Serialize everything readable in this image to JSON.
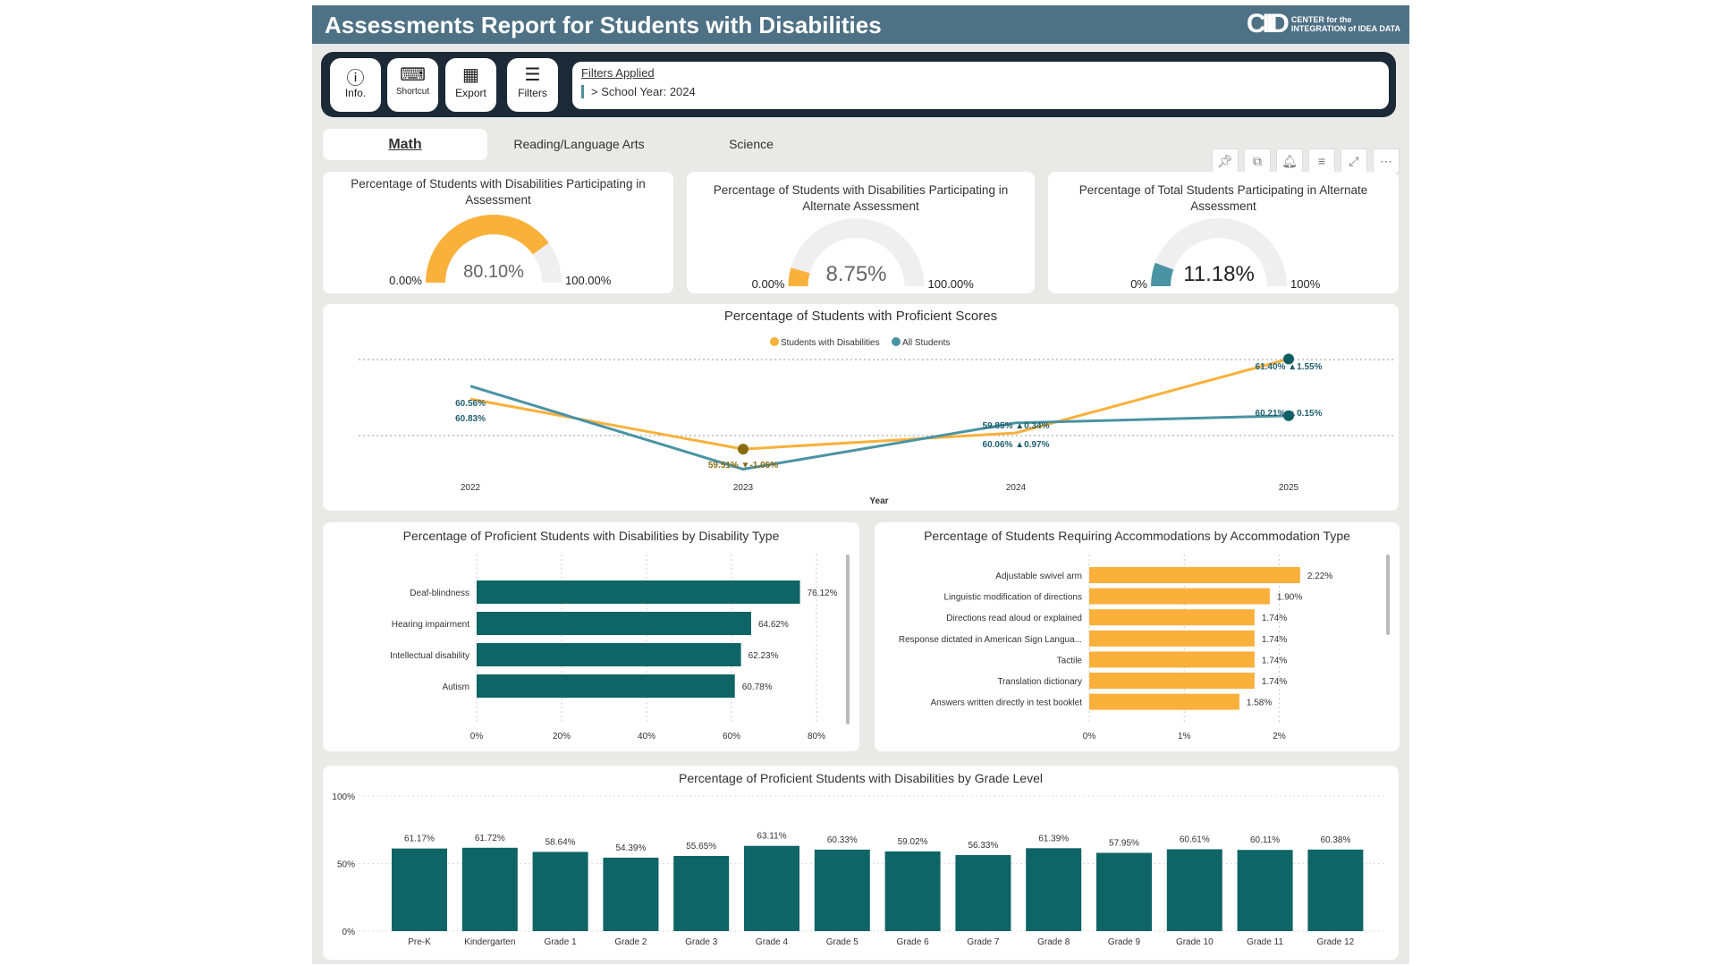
{
  "header": {
    "title": "Assessments Report for Students with Disabilities",
    "logo_text": "CENTER for the INTEGRATION of IDEA DATA"
  },
  "toolbar": {
    "info": "Info.",
    "shortcut": "Shortcut",
    "export": "Export",
    "filters": "Filters",
    "filters_applied": "Filters Applied",
    "filter_value": "> School Year: 2024"
  },
  "tabs": [
    "Math",
    "Reading/Language Arts",
    "Science"
  ],
  "gauges": [
    {
      "title": "Percentage of Students with Disabilities Participating in Assessment",
      "value": 80.1,
      "label": "80.10%",
      "min": "0.00%",
      "max": "100.00%",
      "color": "#f9b13b"
    },
    {
      "title": "Percentage of Students with Disabilities Participating in Alternate Assessment",
      "value": 8.75,
      "label": "8.75%",
      "min": "0.00%",
      "max": "100.00%",
      "color": "#f9b13b"
    },
    {
      "title": "Percentage of Total Students Participating in Alternate Assessment",
      "value": 11.18,
      "label": "11.18%",
      "min": "0%",
      "max": "100%",
      "color": "#4a93a3"
    }
  ],
  "chart_data": [
    {
      "type": "line",
      "title": "Percentage of Students with Proficient Scores",
      "xlabel": "Year",
      "x": [
        "2022",
        "2023",
        "2024",
        "2025"
      ],
      "series": [
        {
          "name": "Students with Disabilities",
          "color": "#f9b13b",
          "values": [
            60.56,
            59.51,
            59.85,
            61.4
          ]
        },
        {
          "name": "All Students",
          "color": "#4a93a3",
          "values": [
            60.83,
            59.09,
            60.06,
            60.21
          ]
        }
      ],
      "ylim": [
        58.8,
        61.8
      ],
      "annotations": [
        {
          "text": "60.56%",
          "year": "2022",
          "pos": "upper"
        },
        {
          "text": "60.83%",
          "year": "2022",
          "pos": "lower"
        },
        {
          "text": "59.51% ▼-1.05%",
          "year": "2023",
          "pos": "lower"
        },
        {
          "text": "59.85% ▲0.34%",
          "year": "2024",
          "pos": "upper"
        },
        {
          "text": "60.06% ▲0.97%",
          "year": "2024",
          "pos": "lower"
        },
        {
          "text": "61.40% ▲1.55%",
          "year": "2025",
          "pos": "upper"
        },
        {
          "text": "60.21% ▲0.15%",
          "year": "2025",
          "pos": "lower"
        }
      ]
    },
    {
      "type": "bar",
      "orientation": "horizontal",
      "title": "Percentage of Proficient Students with Disabilities by Disability Type",
      "categories": [
        "Deaf-blindness",
        "Hearing impairment",
        "Intellectual disability",
        "Autism"
      ],
      "values": [
        76.12,
        64.62,
        62.23,
        60.78
      ],
      "labels": [
        "76.12%",
        "64.62%",
        "62.23%",
        "60.78%"
      ],
      "xlim": [
        0,
        80
      ],
      "ticks": [
        "0%",
        "20%",
        "40%",
        "60%",
        "80%"
      ],
      "color": "#0f6466"
    },
    {
      "type": "bar",
      "orientation": "horizontal",
      "title": "Percentage of Students Requiring Accommodations by Accommodation Type",
      "categories": [
        "Adjustable swivel arm",
        "Linguistic modification of directions",
        "Directions read aloud or explained",
        "Response dictated in American Sign Langua...",
        "Tactile",
        "Translation dictionary",
        "Answers written directly in test booklet"
      ],
      "values": [
        2.22,
        1.9,
        1.74,
        1.74,
        1.74,
        1.74,
        1.58
      ],
      "labels": [
        "2.22%",
        "1.90%",
        "1.74%",
        "1.74%",
        "1.74%",
        "1.74%",
        "1.58%"
      ],
      "xlim": [
        0,
        2.4
      ],
      "ticks": [
        "0%",
        "1%",
        "2%"
      ],
      "color": "#f9b13b"
    },
    {
      "type": "bar",
      "title": "Percentage of Proficient Students with Disabilities by Grade Level",
      "categories": [
        "Pre-K",
        "Kindergarten",
        "Grade 1",
        "Grade 2",
        "Grade 3",
        "Grade 4",
        "Grade 5",
        "Grade 6",
        "Grade 7",
        "Grade 8",
        "Grade 9",
        "Grade 10",
        "Grade 11",
        "Grade 12"
      ],
      "values": [
        61.17,
        61.72,
        58.64,
        54.39,
        55.65,
        63.11,
        60.33,
        59.02,
        56.33,
        61.39,
        57.95,
        60.61,
        60.11,
        60.38
      ],
      "labels": [
        "61.17%",
        "61.72%",
        "58.64%",
        "54.39%",
        "55.65%",
        "63.11%",
        "60.33%",
        "59.02%",
        "56.33%",
        "61.39%",
        "57.95%",
        "60.61%",
        "60.11%",
        "60.38%"
      ],
      "ylim": [
        0,
        100
      ],
      "ticks": [
        "0%",
        "50%",
        "100%"
      ],
      "color": "#0f6466"
    }
  ]
}
